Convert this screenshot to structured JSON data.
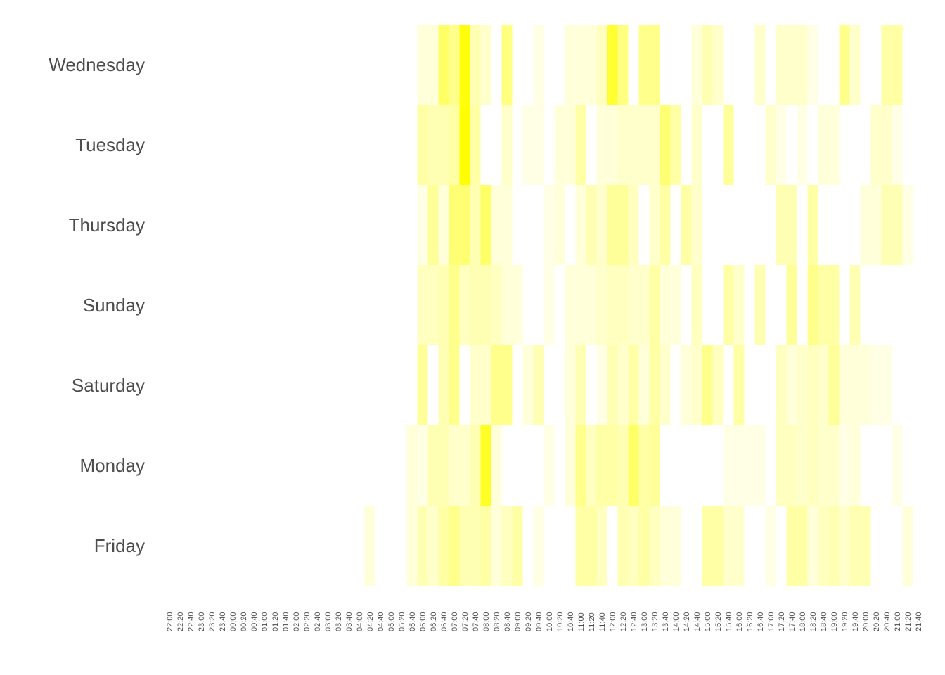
{
  "chart_data": {
    "type": "heatmap",
    "title": "",
    "xlabel": "",
    "ylabel": "",
    "grid": false,
    "legend": "none",
    "low_color": "#ffffff",
    "high_color": "#ffff00",
    "value_range": [
      0,
      1
    ],
    "days": [
      "Wednesday",
      "Tuesday",
      "Thursday",
      "Sunday",
      "Saturday",
      "Monday",
      "Friday"
    ],
    "x_ticks": [
      "22:00",
      "22:20",
      "22:40",
      "23:00",
      "23:20",
      "23:40",
      "00:00",
      "00:20",
      "00:40",
      "01:00",
      "01:20",
      "01:40",
      "02:00",
      "02:20",
      "02:40",
      "03:00",
      "03:20",
      "03:40",
      "04:00",
      "04:20",
      "04:40",
      "05:00",
      "05:20",
      "05:40",
      "06:00",
      "06:20",
      "06:40",
      "07:00",
      "07:20",
      "07:40",
      "08:00",
      "08:20",
      "08:40",
      "09:00",
      "09:20",
      "09:40",
      "10:00",
      "10:20",
      "10:40",
      "11:00",
      "11:20",
      "11:40",
      "12:00",
      "12:20",
      "12:40",
      "13:00",
      "13:20",
      "13:40",
      "14:00",
      "14:20",
      "14:40",
      "15:00",
      "15:20",
      "15:40",
      "16:00",
      "16:20",
      "16:40",
      "17:00",
      "17:20",
      "17:40",
      "18:00",
      "18:20",
      "18:40",
      "19:00",
      "19:20",
      "19:40",
      "20:00",
      "20:20",
      "20:40",
      "21:00",
      "21:20",
      "21:40"
    ],
    "intensity": {
      "Wednesday": [
        0,
        0,
        0,
        0,
        0,
        0,
        0,
        0,
        0,
        0,
        0,
        0,
        0,
        0,
        0,
        0,
        0,
        0,
        0,
        0,
        0,
        0,
        0,
        0,
        0.15,
        0.15,
        0.6,
        0.45,
        0.95,
        0.3,
        0.2,
        0,
        0.5,
        0,
        0,
        0.1,
        0,
        0,
        0.15,
        0.15,
        0.15,
        0.25,
        0.8,
        0.5,
        0,
        0.45,
        0.45,
        0,
        0,
        0,
        0.15,
        0.3,
        0.2,
        0,
        0,
        0,
        0.2,
        0,
        0.2,
        0.2,
        0.2,
        0.1,
        0,
        0,
        0.45,
        0.2,
        0,
        0,
        0.35,
        0.35,
        0,
        0,
        0,
        0
      ],
      "Tuesday": [
        0,
        0,
        0,
        0,
        0,
        0,
        0,
        0,
        0,
        0,
        0,
        0,
        0,
        0,
        0,
        0,
        0,
        0,
        0,
        0,
        0,
        0,
        0,
        0,
        0.35,
        0.3,
        0.3,
        0.35,
        1.0,
        0.35,
        0,
        0,
        0.2,
        0,
        0.1,
        0.1,
        0,
        0.15,
        0.15,
        0.35,
        0,
        0.15,
        0.15,
        0.2,
        0.2,
        0.2,
        0.2,
        0.55,
        0.35,
        0,
        0.2,
        0,
        0,
        0.4,
        0,
        0,
        0,
        0.2,
        0.1,
        0,
        0.1,
        0,
        0.15,
        0.15,
        0,
        0,
        0,
        0.2,
        0.2,
        0.1,
        0,
        0,
        0,
        0
      ],
      "Thursday": [
        0,
        0,
        0,
        0,
        0,
        0,
        0,
        0,
        0,
        0,
        0,
        0,
        0,
        0,
        0,
        0,
        0,
        0,
        0,
        0,
        0,
        0,
        0,
        0,
        0.1,
        0.4,
        0.15,
        0.55,
        0.55,
        0.3,
        0.6,
        0.15,
        0.15,
        0,
        0,
        0,
        0.1,
        0.15,
        0,
        0.15,
        0.3,
        0.2,
        0.4,
        0.4,
        0.25,
        0,
        0.2,
        0.35,
        0,
        0.35,
        0.2,
        0,
        0,
        0,
        0,
        0,
        0,
        0,
        0.3,
        0.3,
        0,
        0.35,
        0,
        0,
        0,
        0,
        0.15,
        0.15,
        0.3,
        0.3,
        0.1,
        0,
        0,
        0
      ],
      "Sunday": [
        0,
        0,
        0,
        0,
        0,
        0,
        0,
        0,
        0,
        0,
        0,
        0,
        0,
        0,
        0,
        0,
        0,
        0,
        0,
        0,
        0,
        0,
        0,
        0,
        0.25,
        0.25,
        0.3,
        0.45,
        0.25,
        0.3,
        0.3,
        0.25,
        0.15,
        0.15,
        0,
        0,
        0.1,
        0,
        0.15,
        0.15,
        0.15,
        0.2,
        0.25,
        0.25,
        0.2,
        0.2,
        0.35,
        0.15,
        0.15,
        0,
        0.25,
        0,
        0,
        0.35,
        0.2,
        0,
        0.3,
        0,
        0,
        0.4,
        0,
        0.45,
        0.35,
        0.35,
        0,
        0.3,
        0,
        0,
        0,
        0,
        0,
        0,
        0,
        0
      ],
      "Saturday": [
        0,
        0,
        0,
        0,
        0,
        0,
        0,
        0,
        0,
        0,
        0,
        0,
        0,
        0,
        0,
        0,
        0,
        0,
        0,
        0,
        0,
        0,
        0,
        0,
        0.4,
        0,
        0.3,
        0.45,
        0,
        0.2,
        0.2,
        0.45,
        0.45,
        0,
        0.15,
        0.3,
        0,
        0,
        0.15,
        0.3,
        0,
        0.1,
        0.3,
        0.2,
        0.35,
        0.15,
        0.35,
        0.2,
        0,
        0.15,
        0.2,
        0.45,
        0.25,
        0,
        0.35,
        0,
        0,
        0,
        0.25,
        0.15,
        0.2,
        0.25,
        0.2,
        0.4,
        0.15,
        0.15,
        0.15,
        0.1,
        0.1,
        0,
        0,
        0,
        0,
        0
      ],
      "Monday": [
        0,
        0,
        0,
        0,
        0,
        0,
        0,
        0,
        0,
        0,
        0,
        0,
        0,
        0,
        0,
        0,
        0,
        0,
        0,
        0,
        0,
        0,
        0,
        0.15,
        0.1,
        0.3,
        0.3,
        0.2,
        0.2,
        0.3,
        0.85,
        0.15,
        0,
        0,
        0,
        0,
        0.1,
        0,
        0.15,
        0.45,
        0.25,
        0.35,
        0.35,
        0.3,
        0.6,
        0.35,
        0.4,
        0,
        0,
        0,
        0,
        0,
        0,
        0.1,
        0.1,
        0.1,
        0.1,
        0,
        0.25,
        0.25,
        0.2,
        0.25,
        0.2,
        0.2,
        0.1,
        0.15,
        0,
        0,
        0,
        0.1,
        0,
        0,
        0,
        0
      ],
      "Friday": [
        0,
        0,
        0,
        0,
        0,
        0,
        0,
        0,
        0,
        0,
        0,
        0,
        0,
        0,
        0,
        0,
        0,
        0,
        0,
        0.15,
        0,
        0,
        0,
        0.15,
        0.3,
        0.2,
        0.35,
        0.45,
        0.3,
        0.3,
        0.35,
        0.15,
        0.25,
        0.35,
        0,
        0.1,
        0,
        0,
        0,
        0.35,
        0.35,
        0.25,
        0,
        0.3,
        0.25,
        0.35,
        0.25,
        0.15,
        0.15,
        0,
        0,
        0.35,
        0.35,
        0.2,
        0.2,
        0,
        0,
        0.1,
        0,
        0.35,
        0.35,
        0.15,
        0.25,
        0.3,
        0.2,
        0.3,
        0.3,
        0,
        0,
        0,
        0.15,
        0,
        0,
        0
      ]
    }
  }
}
